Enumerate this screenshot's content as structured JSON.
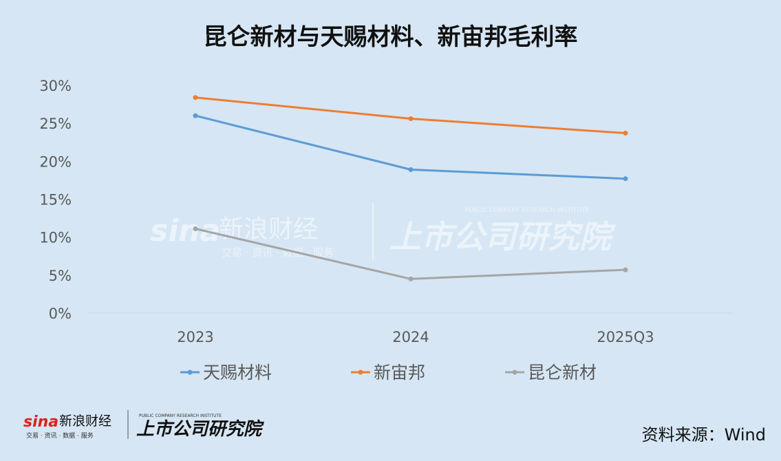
{
  "title": "昆仑新材与天赐材料、新宙邦毛利率",
  "source": "资料来源：Wind",
  "watermark": {
    "brand": "sina",
    "brand_cn": "新浪财经",
    "brand_sub": "交易 · 资讯 · 数据 · 服务",
    "institute": "上市公司研究院",
    "institute_en": "PUBLIC COMPANY RESEARCH INSTITUTE"
  },
  "colors": {
    "background": "#d6e6f4",
    "tianci": "#5b9bd5",
    "xinzhoubang": "#ed7d31",
    "kunlun": "#a5a5a5",
    "axis_text": "#595959"
  },
  "chart_data": {
    "type": "line",
    "title": "昆仑新材与天赐材料、新宙邦毛利率",
    "categories": [
      "2023",
      "2024",
      "2025Q3"
    ],
    "y_ticks": [
      "0%",
      "5%",
      "10%",
      "15%",
      "20%",
      "25%",
      "30%"
    ],
    "ylim": [
      0,
      30
    ],
    "grid": false,
    "legend_position": "bottom",
    "series": [
      {
        "name": "天赐材料",
        "values": [
          26.0,
          18.9,
          17.7
        ],
        "color": "#5b9bd5"
      },
      {
        "name": "新宙邦",
        "values": [
          28.4,
          25.6,
          23.7
        ],
        "color": "#ed7d31"
      },
      {
        "name": "昆仑新材",
        "values": [
          11.1,
          4.5,
          5.7
        ],
        "color": "#a5a5a5"
      }
    ]
  }
}
